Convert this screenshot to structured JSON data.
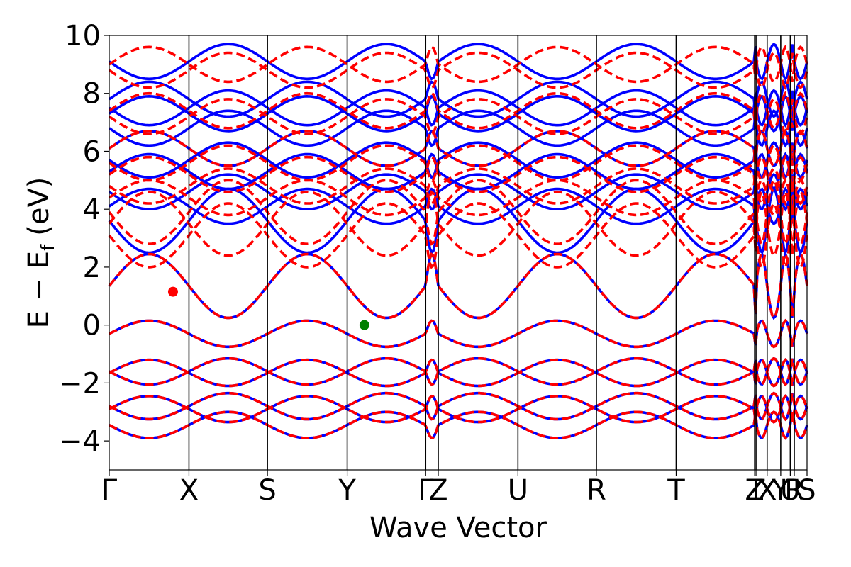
{
  "chart_data": {
    "type": "line",
    "xlabel": "Wave Vector",
    "ylabel": {
      "main": "E − E",
      "sub": "f",
      "unit": "(eV)"
    },
    "ylim": [
      -5,
      10
    ],
    "yticks": [
      {
        "v": 10,
        "label": "10"
      },
      {
        "v": 8,
        "label": "8"
      },
      {
        "v": 6,
        "label": "6"
      },
      {
        "v": 4,
        "label": "4"
      },
      {
        "v": 2,
        "label": "2"
      },
      {
        "v": 0,
        "label": "0"
      },
      {
        "v": -2,
        "label": "−2"
      },
      {
        "v": -4,
        "label": "−4"
      }
    ],
    "kpath": [
      {
        "label": "Γ",
        "x": 0.0
      },
      {
        "label": "X",
        "x": 1.0
      },
      {
        "label": "S",
        "x": 1.984
      },
      {
        "label": "Y",
        "x": 2.984
      },
      {
        "label": "Γ",
        "x": 3.968
      },
      {
        "label": "Z",
        "x": 4.126
      },
      {
        "label": "U",
        "x": 5.125
      },
      {
        "label": "R",
        "x": 6.109
      },
      {
        "label": "T",
        "x": 7.109
      },
      {
        "label": "Z",
        "x": 8.093
      },
      {
        "label": "T",
        "x": 8.11
      },
      {
        "label": "X",
        "x": 8.25
      },
      {
        "label": "Y",
        "x": 8.42
      },
      {
        "label": "U",
        "x": 8.54
      },
      {
        "label": "R",
        "x": 8.59
      },
      {
        "label": "S",
        "x": 8.75
      }
    ],
    "xlim": [
      0,
      8.75
    ],
    "grid": false,
    "series": [
      {
        "style": "solid",
        "color": "#0000ff",
        "valence": [
          -0.3,
          -1.6,
          -1.65,
          -2.8,
          -2.9,
          -3.45
        ],
        "conduction": [
          1.35,
          3.6,
          4.1,
          4.6,
          5.3,
          5.7,
          6.1,
          6.8,
          7.3,
          7.5,
          7.8,
          9.1
        ]
      },
      {
        "style": "dashed",
        "color": "#ff0000",
        "valence": [
          -0.3,
          -1.6,
          -1.65,
          -2.8,
          -2.9,
          -3.45
        ],
        "conduction": [
          1.35,
          3.1,
          3.5,
          3.9,
          4.4,
          4.8,
          5.2,
          5.6,
          6.1,
          7.2,
          7.4,
          8.8,
          9.0
        ]
      }
    ],
    "markers": [
      {
        "name": "cbm",
        "x": 0.8,
        "y": 1.15,
        "color": "#ff0000"
      },
      {
        "name": "vbm",
        "x": 3.2,
        "y": 0.0,
        "color": "#008000"
      }
    ]
  }
}
